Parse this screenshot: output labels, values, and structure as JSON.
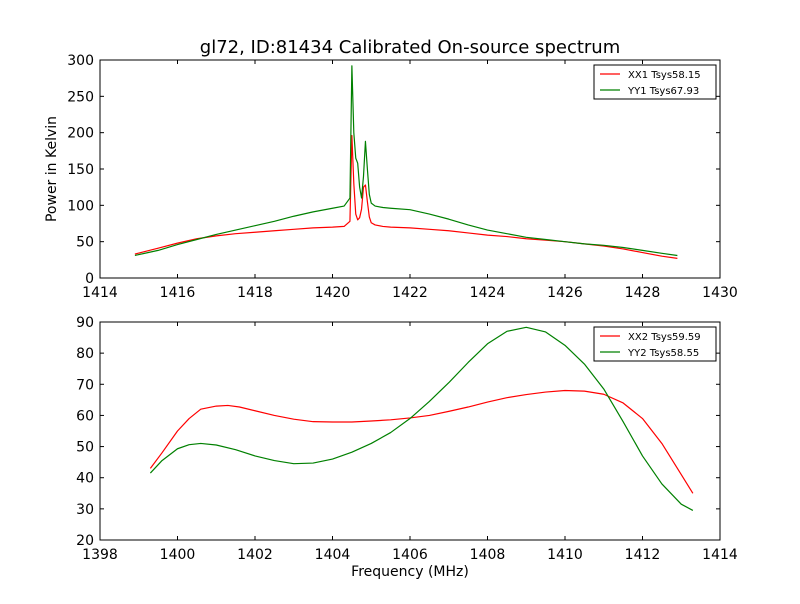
{
  "title": "gl72, ID:81434 Calibrated On-source spectrum",
  "chart_data": [
    {
      "type": "line",
      "title": "gl72, ID:81434 Calibrated On-source spectrum",
      "xlabel": "",
      "ylabel": "Power in Kelvin",
      "xlim": [
        1414,
        1430
      ],
      "ylim": [
        0,
        300
      ],
      "xticks": [
        1414,
        1416,
        1418,
        1420,
        1422,
        1424,
        1426,
        1428,
        1430
      ],
      "yticks": [
        0,
        50,
        100,
        150,
        200,
        250,
        300
      ],
      "grid": false,
      "legend": "top-right",
      "series": [
        {
          "name": "XX1 Tsys58.15",
          "color": "#ff0000",
          "x": [
            1414.9,
            1415.5,
            1416.0,
            1416.5,
            1417.0,
            1417.5,
            1418.0,
            1418.5,
            1419.0,
            1419.5,
            1420.0,
            1420.3,
            1420.45,
            1420.5,
            1420.55,
            1420.6,
            1420.65,
            1420.7,
            1420.75,
            1420.8,
            1420.85,
            1420.9,
            1420.95,
            1421.0,
            1421.1,
            1421.3,
            1421.5,
            1422.0,
            1422.5,
            1423.0,
            1423.5,
            1424.0,
            1424.5,
            1425.0,
            1425.5,
            1426.0,
            1426.5,
            1427.0,
            1427.5,
            1428.0,
            1428.5,
            1428.9
          ],
          "y": [
            33,
            41,
            48,
            54,
            58,
            61,
            63,
            65,
            67,
            69,
            70,
            71,
            78,
            196,
            130,
            88,
            80,
            83,
            95,
            125,
            128,
            105,
            84,
            76,
            73,
            71,
            70,
            69,
            67,
            65,
            62,
            59,
            57,
            54,
            52,
            50,
            47,
            44,
            40,
            35,
            30,
            27
          ]
        },
        {
          "name": "YY1 Tsys67.93",
          "color": "#008000",
          "x": [
            1414.9,
            1415.5,
            1416.0,
            1416.5,
            1417.0,
            1417.5,
            1418.0,
            1418.5,
            1419.0,
            1419.5,
            1420.0,
            1420.3,
            1420.45,
            1420.5,
            1420.55,
            1420.6,
            1420.65,
            1420.7,
            1420.75,
            1420.8,
            1420.85,
            1420.9,
            1420.95,
            1421.0,
            1421.1,
            1421.3,
            1421.5,
            1422.0,
            1422.5,
            1423.0,
            1423.5,
            1424.0,
            1424.5,
            1425.0,
            1425.5,
            1426.0,
            1426.5,
            1427.0,
            1427.5,
            1428.0,
            1428.5,
            1428.9
          ],
          "y": [
            31,
            38,
            46,
            53,
            60,
            66,
            72,
            78,
            85,
            91,
            96,
            99,
            110,
            292,
            200,
            165,
            158,
            125,
            110,
            140,
            188,
            150,
            115,
            103,
            99,
            97,
            96,
            94,
            88,
            81,
            73,
            66,
            61,
            56,
            53,
            50,
            47,
            45,
            42,
            38,
            34,
            31
          ]
        }
      ]
    },
    {
      "type": "line",
      "title": "",
      "xlabel": "Frequency (MHz)",
      "ylabel": "",
      "xlim": [
        1398,
        1414
      ],
      "ylim": [
        20,
        90
      ],
      "xticks": [
        1398,
        1400,
        1402,
        1404,
        1406,
        1408,
        1410,
        1412,
        1414
      ],
      "yticks": [
        20,
        30,
        40,
        50,
        60,
        70,
        80,
        90
      ],
      "grid": false,
      "legend": "top-right",
      "series": [
        {
          "name": "XX2 Tsys59.59",
          "color": "#ff0000",
          "x": [
            1399.3,
            1399.6,
            1400.0,
            1400.3,
            1400.6,
            1401.0,
            1401.3,
            1401.6,
            1402.0,
            1402.5,
            1403.0,
            1403.5,
            1404.0,
            1404.5,
            1405.0,
            1405.5,
            1406.0,
            1406.5,
            1407.0,
            1407.5,
            1408.0,
            1408.5,
            1409.0,
            1409.5,
            1410.0,
            1410.5,
            1411.0,
            1411.5,
            1412.0,
            1412.5,
            1413.0,
            1413.3
          ],
          "y": [
            43,
            48,
            55,
            59,
            62,
            63,
            63.2,
            62.7,
            61.5,
            60,
            58.8,
            58,
            57.9,
            57.9,
            58.2,
            58.6,
            59.2,
            60,
            61.3,
            62.7,
            64.3,
            65.7,
            66.7,
            67.5,
            68,
            67.8,
            66.8,
            64,
            59,
            51,
            41,
            35
          ]
        },
        {
          "name": "YY2 Tsys58.55",
          "color": "#008000",
          "x": [
            1399.3,
            1399.6,
            1400.0,
            1400.3,
            1400.6,
            1401.0,
            1401.5,
            1402.0,
            1402.5,
            1403.0,
            1403.5,
            1404.0,
            1404.5,
            1405.0,
            1405.5,
            1406.0,
            1406.5,
            1407.0,
            1407.5,
            1408.0,
            1408.5,
            1409.0,
            1409.5,
            1410.0,
            1410.5,
            1411.0,
            1411.5,
            1412.0,
            1412.5,
            1413.0,
            1413.3
          ],
          "y": [
            41.5,
            45.5,
            49.3,
            50.6,
            51,
            50.5,
            49,
            47,
            45.5,
            44.5,
            44.7,
            46,
            48.2,
            51,
            54.5,
            59,
            64.5,
            70.5,
            77,
            83,
            87,
            88.3,
            86.8,
            82.5,
            76.5,
            68.5,
            58,
            47,
            38,
            31.5,
            29.5
          ]
        }
      ]
    }
  ]
}
